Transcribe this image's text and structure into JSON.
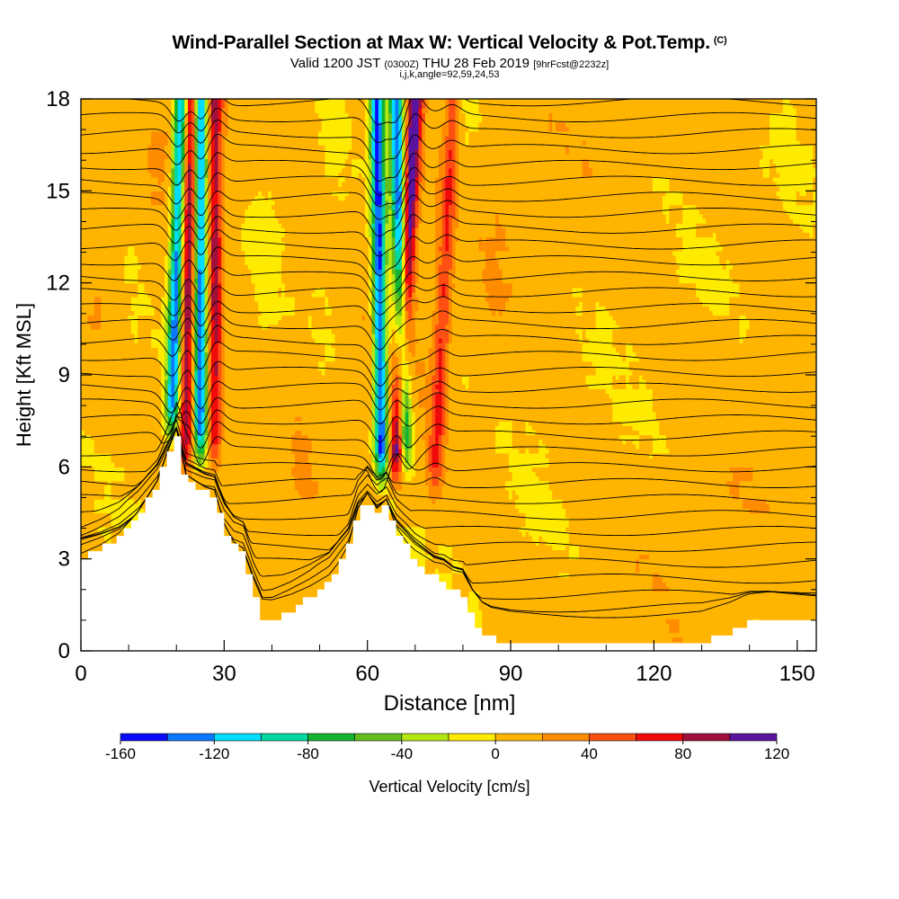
{
  "chart_data": {
    "type": "heatmap",
    "title": "Wind-Parallel Section at Max W: Vertical Velocity & Pot.Temp.",
    "title_mark": "(C)",
    "subtitle_parts": [
      "Valid 1200 JST",
      "(0300Z)",
      "THU 28 Feb 2019",
      "[9hrFcst@2232z]"
    ],
    "subsubtitle": "i,j,k,angle=92,59,24,53",
    "xlabel": "Distance [nm]",
    "ylabel": "Height [Kft MSL]",
    "xlim": [
      0,
      154
    ],
    "ylim": [
      0,
      18
    ],
    "x_ticks": [
      "0",
      "30",
      "60",
      "90",
      "120",
      "150"
    ],
    "y_ticks": [
      "0",
      "3",
      "6",
      "9",
      "12",
      "15",
      "18"
    ],
    "colorbar": {
      "label": "Vertical Velocity [cm/s]",
      "tick_labels": [
        "-160",
        "-120",
        "-80",
        "-40",
        "0",
        "40",
        "80",
        "120"
      ],
      "bin_edges": [
        -160,
        -140,
        -120,
        -100,
        -80,
        -60,
        -40,
        -20,
        0,
        20,
        40,
        60,
        80,
        100,
        120
      ],
      "colors": [
        "#0a0aff",
        "#0a78ff",
        "#00dcff",
        "#00d8a0",
        "#14b432",
        "#64be1e",
        "#b4e614",
        "#ffeb00",
        "#ffb400",
        "#ff8c00",
        "#ff5014",
        "#f00a0a",
        "#a0103c",
        "#5a14a0"
      ]
    },
    "terrain_kft": {
      "x_nm": [
        0,
        4,
        8,
        12,
        16,
        18,
        20,
        22,
        24,
        26,
        28,
        30,
        32,
        34,
        36,
        38,
        40,
        44,
        48,
        52,
        56,
        58,
        60,
        62,
        64,
        66,
        70,
        74,
        76,
        78,
        80,
        82,
        84,
        86,
        90,
        100,
        110,
        120,
        130,
        136,
        140,
        144,
        150,
        154
      ],
      "z_kft": [
        3.0,
        3.3,
        3.7,
        4.4,
        5.4,
        6.3,
        7.1,
        5.6,
        5.4,
        5.2,
        5.1,
        4.0,
        3.4,
        3.2,
        2.0,
        1.0,
        1.0,
        1.3,
        1.7,
        2.2,
        3.3,
        4.5,
        5.0,
        4.5,
        4.8,
        3.9,
        3.0,
        2.4,
        2.3,
        2.0,
        1.9,
        1.1,
        0.6,
        0.4,
        0.3,
        0.3,
        0.3,
        0.3,
        0.3,
        0.6,
        0.9,
        1.0,
        1.0,
        1.0
      ]
    },
    "updraft_bands": [
      {
        "name": "",
        "x0_nm": 22,
        "z0_kft": 6.0,
        "x1_nm": 23,
        "z1_kft": 18,
        "peak_cm_s": 100
      },
      {
        "name": "",
        "x0_nm": 28,
        "z0_kft": 6.0,
        "x1_nm": 28,
        "z1_kft": 18,
        "peak_cm_s": 80
      },
      {
        "name": "",
        "x0_nm": 66,
        "z0_kft": 5.5,
        "x1_nm": 70,
        "z1_kft": 18,
        "peak_cm_s": 120
      },
      {
        "name": "",
        "x0_nm": 74,
        "z0_kft": 5.0,
        "x1_nm": 78,
        "z1_kft": 18,
        "peak_cm_s": 50
      }
    ],
    "downdraft_bands": [
      {
        "name": "",
        "x0_nm": 19,
        "z0_kft": 7.0,
        "x1_nm": 21,
        "z1_kft": 18,
        "peak_cm_s": -140
      },
      {
        "name": "",
        "x0_nm": 25,
        "z0_kft": 6.2,
        "x1_nm": 25,
        "z1_kft": 18,
        "peak_cm_s": -140
      },
      {
        "name": "",
        "x0_nm": 63,
        "z0_kft": 5.5,
        "x1_nm": 62,
        "z1_kft": 18,
        "peak_cm_s": -150
      },
      {
        "name": "",
        "x0_nm": 68,
        "z0_kft": 6.0,
        "x1_nm": 66,
        "z1_kft": 18,
        "peak_cm_s": -140
      }
    ],
    "theta_contours": {
      "count": 34,
      "note": ""
    }
  }
}
